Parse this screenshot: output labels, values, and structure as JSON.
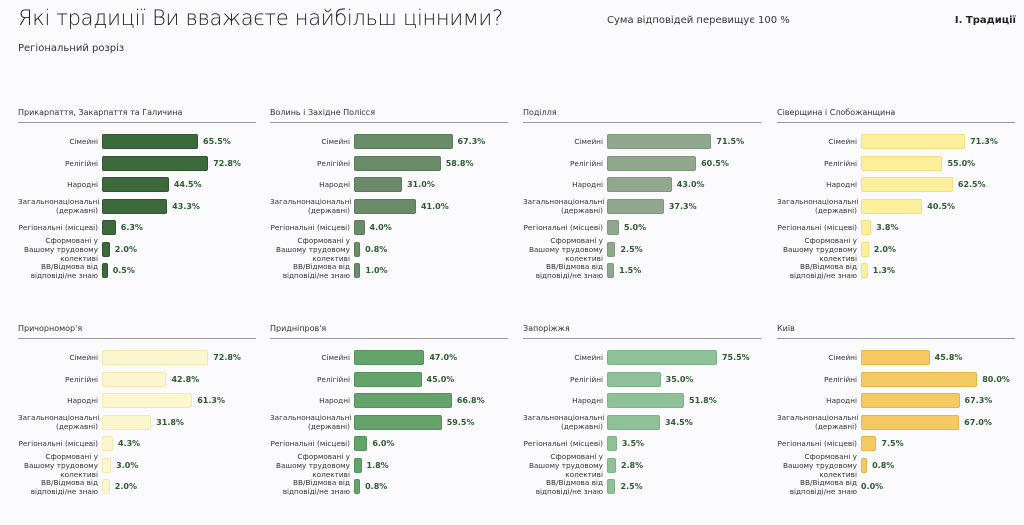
{
  "header": {
    "title": "Які традиції Ви вважаєте найбільш цінними?",
    "note": "Сума відповідей перевищує 100 %",
    "section": "І. Традиції",
    "subtitle": "Регіональний розріз"
  },
  "chart_data": {
    "type": "bar",
    "orientation": "horizontal",
    "unit": "%",
    "categories": [
      "Сімейні",
      "Релігійні",
      "Народні",
      "Загальнонаціональні (державні)",
      "Регіональні (місцеві)",
      "Сформовані у Вашому трудовому колективі",
      "ВВ/Відмова від відповіді/не знаю"
    ],
    "panels": [
      {
        "title": "Прикарпаття, Закарпаття та Галичина",
        "color": "#3d6a3c",
        "border": "#2f5630",
        "values": [
          65.5,
          72.8,
          44.5,
          43.3,
          6.3,
          2.0,
          0.5
        ]
      },
      {
        "title": "Волинь і Західне Полісся",
        "color": "#6b8c6a",
        "border": "#5a7a59",
        "values": [
          67.3,
          58.8,
          31.0,
          41.0,
          4.0,
          0.8,
          1.0
        ]
      },
      {
        "title": "Поділля",
        "color": "#91a88f",
        "border": "#7f977d",
        "values": [
          71.5,
          60.5,
          43.0,
          37.3,
          5.0,
          2.5,
          1.5
        ]
      },
      {
        "title": "Сіверщина і Слобожанщина",
        "color": "#fdf09c",
        "border": "#f3e07a",
        "values": [
          71.3,
          55.0,
          62.5,
          40.5,
          3.8,
          2.0,
          1.3
        ]
      },
      {
        "title": "Причорномор'я",
        "color": "#fdf7cf",
        "border": "#f3e9ad",
        "values": [
          72.8,
          42.8,
          61.3,
          31.8,
          4.3,
          3.0,
          2.0
        ]
      },
      {
        "title": "Придніпров'я",
        "color": "#64a46a",
        "border": "#54925a",
        "values": [
          47.0,
          45.0,
          66.8,
          59.5,
          6.0,
          1.8,
          0.8
        ]
      },
      {
        "title": "Запоріжжя",
        "color": "#8fc198",
        "border": "#7db387",
        "values": [
          75.5,
          35.0,
          51.8,
          34.5,
          3.5,
          2.8,
          2.5
        ]
      },
      {
        "title": "Київ",
        "color": "#f5c964",
        "border": "#e8b445",
        "values": [
          45.8,
          80.0,
          67.3,
          67.0,
          7.5,
          0.8,
          0.0
        ]
      }
    ]
  }
}
